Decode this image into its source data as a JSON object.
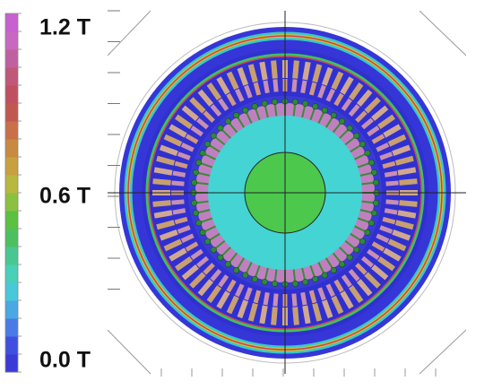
{
  "colorbar": {
    "labels": [
      "1.2 T",
      "0.6 T",
      "0.0 T"
    ]
  }
}
